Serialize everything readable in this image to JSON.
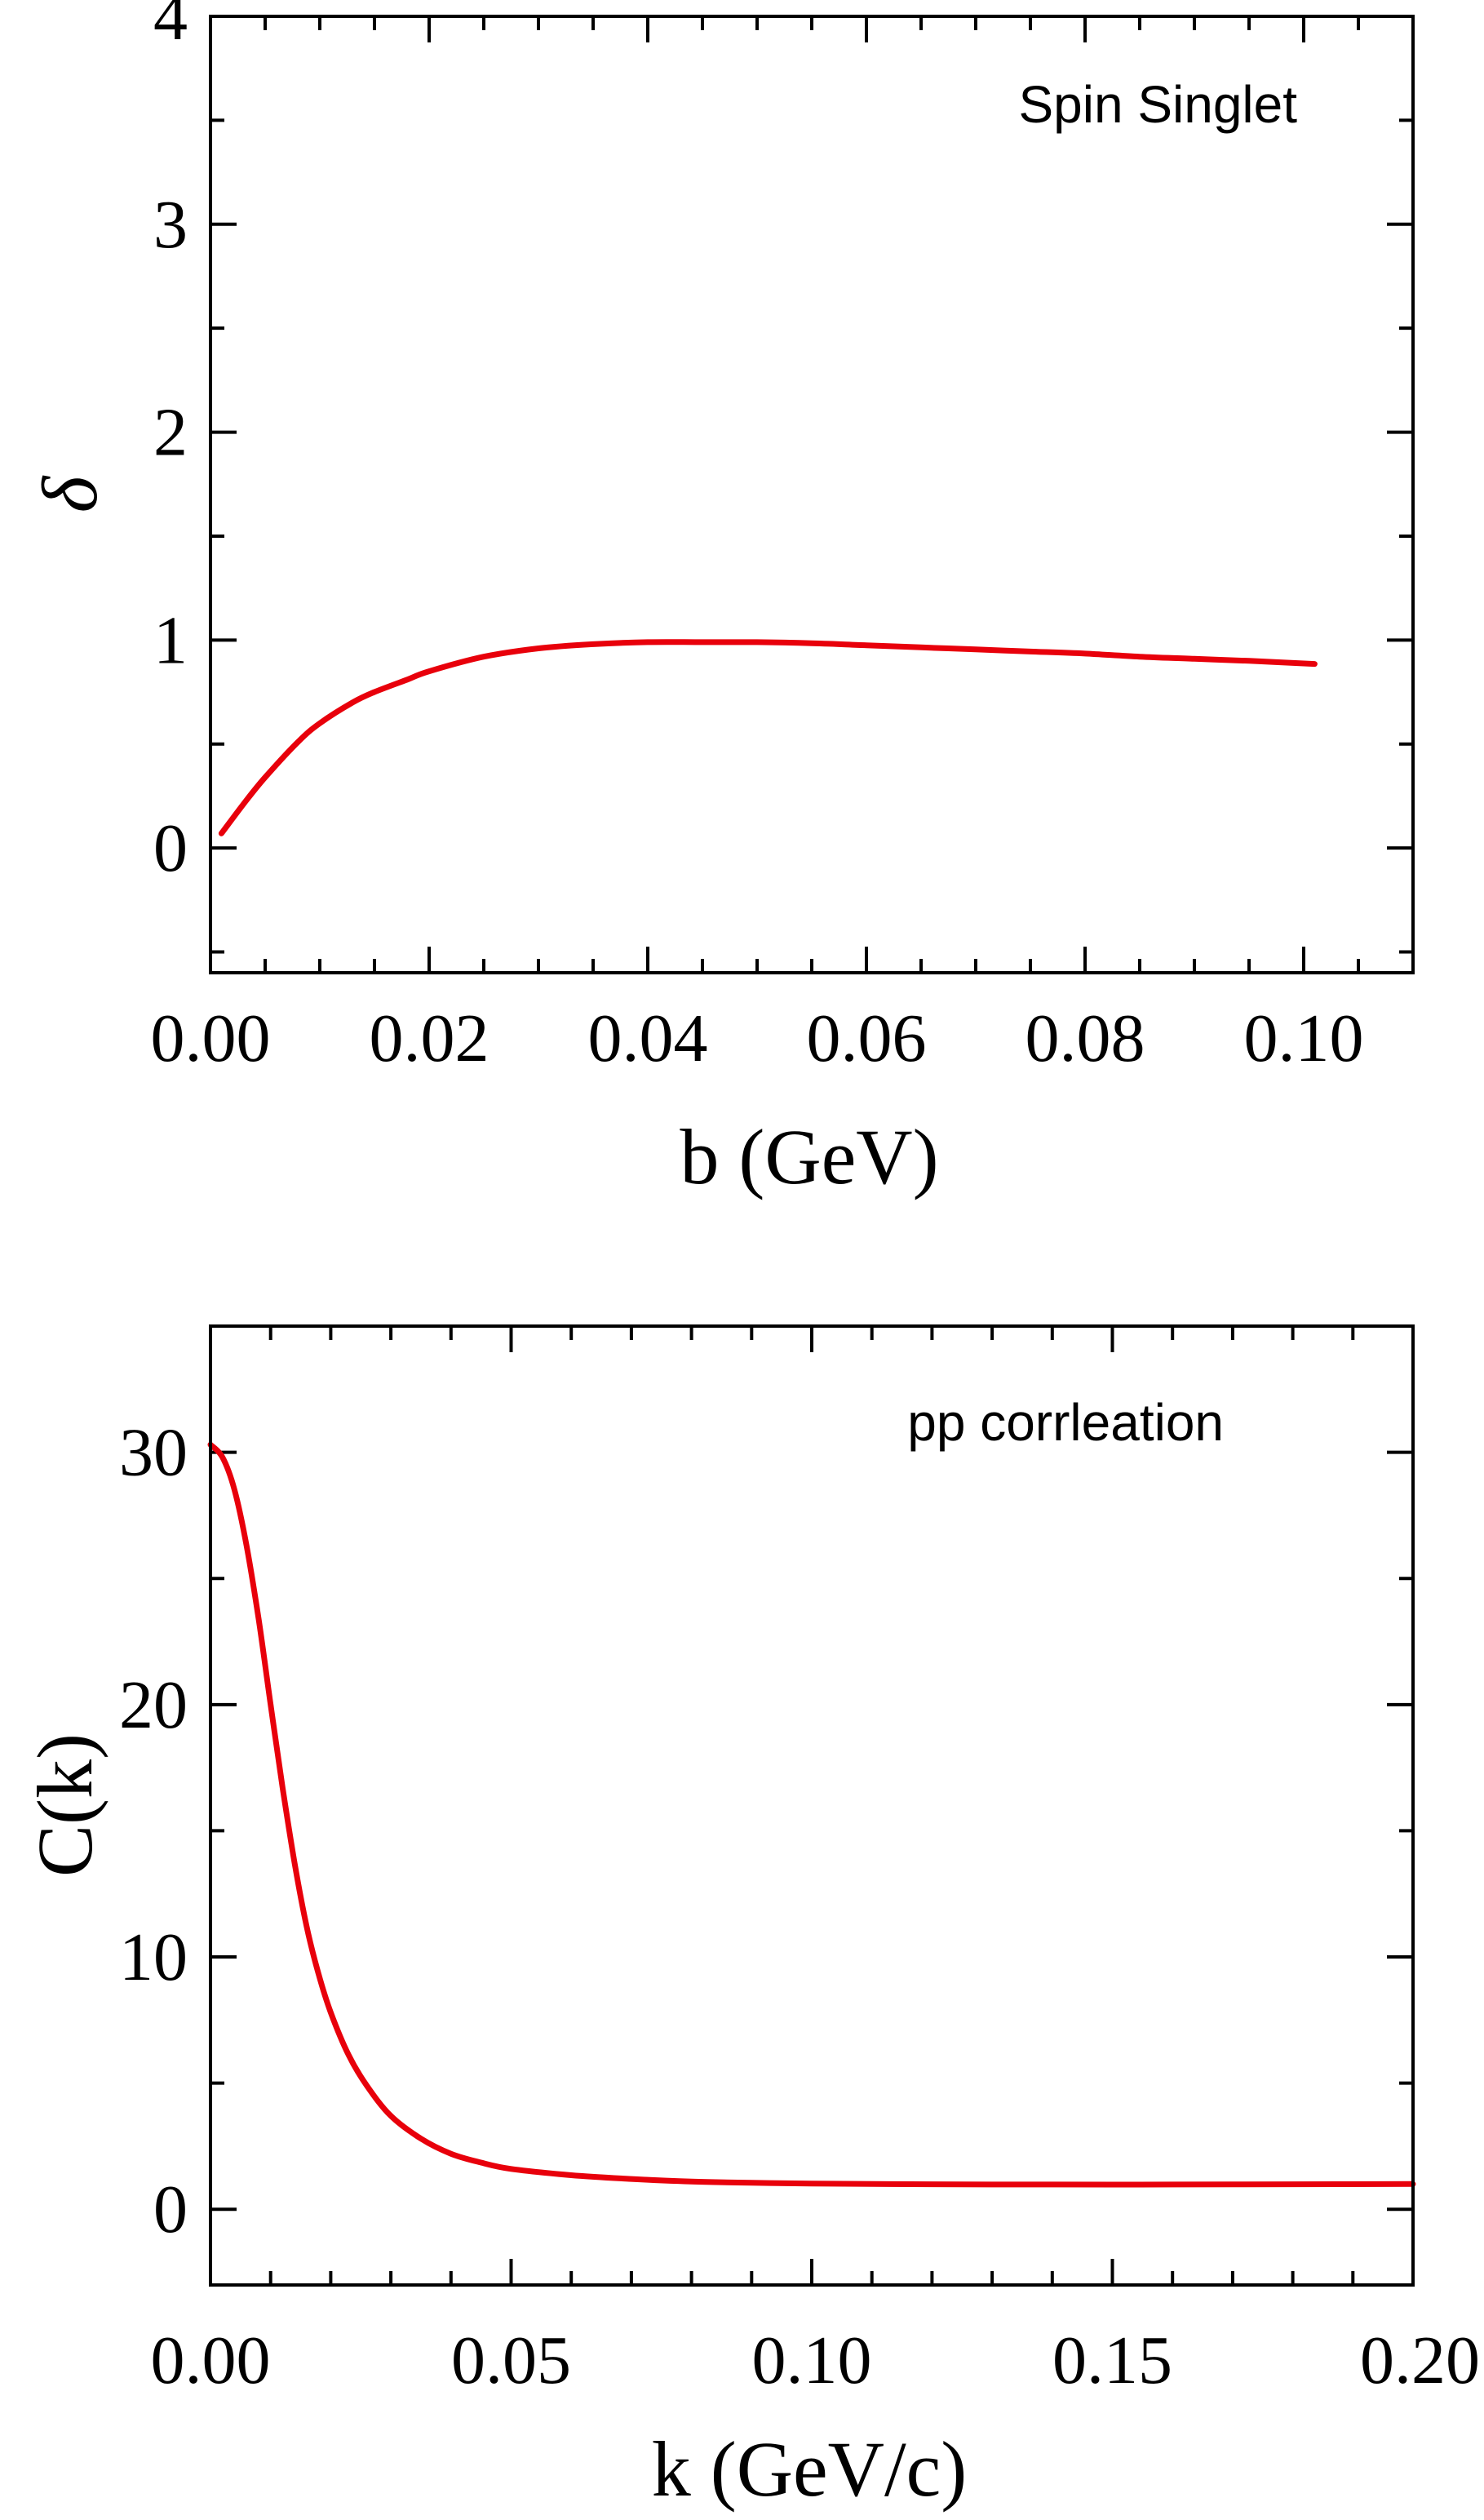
{
  "chart_data": [
    {
      "type": "line",
      "annotation": "Spin Singlet",
      "title": "",
      "xlabel": "b (GeV)",
      "ylabel": "δ",
      "xlim": [
        0.0,
        0.11
      ],
      "ylim": [
        -0.6,
        4.0
      ],
      "xticks": [
        0.0,
        0.02,
        0.04,
        0.06,
        0.08,
        0.1
      ],
      "xtick_labels": [
        "0.00",
        "0.02",
        "0.04",
        "0.06",
        "0.08",
        "0.10"
      ],
      "xminor_step": 0.005,
      "yticks": [
        0,
        1,
        2,
        3,
        4
      ],
      "ytick_labels": [
        "0",
        "1",
        "2",
        "3",
        "4"
      ],
      "yminor_step": 0.5,
      "grid": false,
      "series": [
        {
          "color": "#e8000b",
          "x": [
            0.001,
            0.003,
            0.005,
            0.008,
            0.01,
            0.013,
            0.015,
            0.018,
            0.02,
            0.025,
            0.03,
            0.035,
            0.04,
            0.045,
            0.05,
            0.055,
            0.06,
            0.065,
            0.07,
            0.075,
            0.08,
            0.085,
            0.09,
            0.095,
            0.101
          ],
          "y": [
            0.07,
            0.21,
            0.34,
            0.51,
            0.6,
            0.7,
            0.75,
            0.81,
            0.85,
            0.92,
            0.96,
            0.98,
            0.99,
            0.99,
            0.99,
            0.985,
            0.975,
            0.965,
            0.955,
            0.945,
            0.935,
            0.92,
            0.91,
            0.9,
            0.885
          ]
        }
      ]
    },
    {
      "type": "line",
      "annotation": "pp corrleation",
      "title": "",
      "xlabel": "k (GeV/c)",
      "ylabel": "C(k)",
      "xlim": [
        0.0,
        0.2
      ],
      "ylim": [
        -3,
        35
      ],
      "xticks": [
        0.0,
        0.05,
        0.1,
        0.15,
        0.2
      ],
      "xtick_labels": [
        "0.00",
        "0.05",
        "0.10",
        "0.15",
        "0.20"
      ],
      "xminor_step": 0.01,
      "yticks": [
        0,
        10,
        20,
        30
      ],
      "ytick_labels": [
        "0",
        "10",
        "20",
        "30"
      ],
      "yminor_step": 5,
      "grid": false,
      "series": [
        {
          "color": "#e8000b",
          "x": [
            0.0,
            0.002,
            0.004,
            0.006,
            0.008,
            0.01,
            0.012,
            0.014,
            0.016,
            0.018,
            0.02,
            0.023,
            0.026,
            0.03,
            0.035,
            0.04,
            0.045,
            0.05,
            0.06,
            0.07,
            0.08,
            0.09,
            0.1,
            0.12,
            0.14,
            0.16,
            0.18,
            0.2
          ],
          "y": [
            30.3,
            29.8,
            28.5,
            26.3,
            23.4,
            20.0,
            16.7,
            13.7,
            11.2,
            9.3,
            7.8,
            6.1,
            4.9,
            3.7,
            2.8,
            2.2,
            1.85,
            1.6,
            1.35,
            1.2,
            1.1,
            1.05,
            1.02,
            0.99,
            0.98,
            0.98,
            0.99,
            1.0
          ]
        }
      ]
    }
  ]
}
